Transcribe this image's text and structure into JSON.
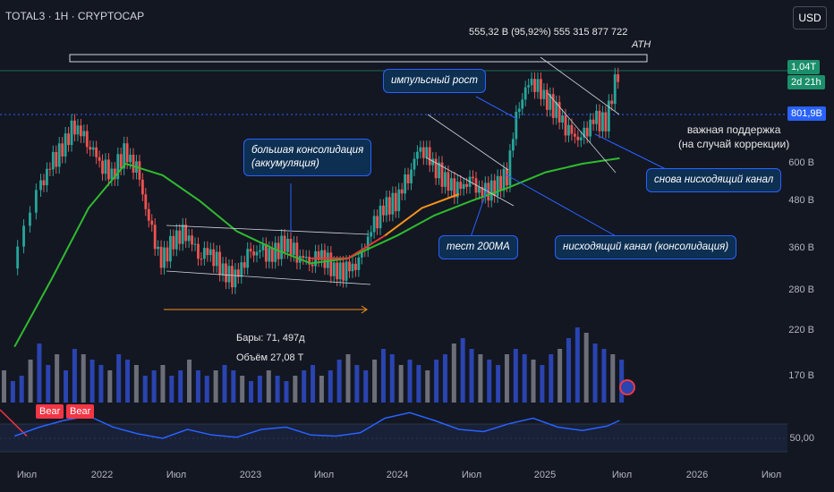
{
  "header": {
    "title": "TOTAL3 · 1H · CRYPTOCAP",
    "currency_button": "USD"
  },
  "annotations": {
    "ath_value": "555,32 B (95,92%) 555 315 877 722",
    "ath": "ATH",
    "bars": "Бары: 71, 497д",
    "volume": "Объём 27,08 T",
    "support": "важная поддержка\n(на случай коррекции)"
  },
  "callouts": {
    "consolidation": "большая консолидация\n(аккумуляция)",
    "impulse": "импульсный рост",
    "test200": "тест 200MA",
    "desc_channel": "нисходящий канал (консолидация)",
    "again_channel": "снова нисходящий канал"
  },
  "price_tags": {
    "current": "1,04T",
    "timer": "2d 21h",
    "level": "801,9B"
  },
  "bear_labels": [
    "Bear",
    "Bear"
  ],
  "osc_value": "50,00",
  "colors": {
    "up": "#26a69a",
    "down": "#ef5350",
    "ma_green": "#2fbb2f",
    "ma_orange": "#f7931a",
    "ma_red": "#e53935",
    "rsi": "#2962ff",
    "vol_blue": "#2a44b0",
    "vol_gray": "#6c6f78",
    "accent": "#2962ff"
  },
  "chart_data": {
    "type": "candlestick",
    "yscale": "log",
    "y_ticks": [
      "600 B",
      "480 B",
      "360 B",
      "280 B",
      "220 B",
      "170 B"
    ],
    "x_ticks": [
      "Июл",
      "2022",
      "Июл",
      "2023",
      "Июл",
      "2024",
      "Июл",
      "2025",
      "Июл",
      "2026",
      "Июл"
    ],
    "period_tick_labels": [
      "2021-07",
      "2022-01",
      "2022-07",
      "2023-01",
      "2023-07",
      "2024-01",
      "2024-07",
      "2025-01",
      "2025-07",
      "2026-01",
      "2026-07"
    ],
    "close_points": [
      [
        "2021-06",
        320
      ],
      [
        "2021-08",
        500
      ],
      [
        "2021-09",
        590
      ],
      [
        "2021-10",
        660
      ],
      [
        "2021-11",
        760
      ],
      [
        "2021-12",
        690
      ],
      [
        "2022-01",
        610
      ],
      [
        "2022-02",
        560
      ],
      [
        "2022-03",
        640
      ],
      [
        "2022-04",
        580
      ],
      [
        "2022-05",
        420
      ],
      [
        "2022-06",
        330
      ],
      [
        "2022-07",
        380
      ],
      [
        "2022-08",
        400
      ],
      [
        "2022-09",
        350
      ],
      [
        "2022-10",
        355
      ],
      [
        "2022-11",
        315
      ],
      [
        "2022-12",
        300
      ],
      [
        "2023-01",
        345
      ],
      [
        "2023-02",
        355
      ],
      [
        "2023-03",
        345
      ],
      [
        "2023-04",
        375
      ],
      [
        "2023-05",
        350
      ],
      [
        "2023-06",
        335
      ],
      [
        "2023-07",
        350
      ],
      [
        "2023-08",
        315
      ],
      [
        "2023-09",
        315
      ],
      [
        "2023-10",
        330
      ],
      [
        "2023-11",
        400
      ],
      [
        "2023-12",
        460
      ],
      [
        "2024-01",
        480
      ],
      [
        "2024-02",
        560
      ],
      [
        "2024-03",
        670
      ],
      [
        "2024-04",
        600
      ],
      [
        "2024-05",
        540
      ],
      [
        "2024-06",
        510
      ],
      [
        "2024-07",
        540
      ],
      [
        "2024-08",
        500
      ],
      [
        "2024-09",
        520
      ],
      [
        "2024-10",
        560
      ],
      [
        "2024-11",
        870
      ],
      [
        "2024-12",
        1000
      ],
      [
        "2025-01",
        900
      ],
      [
        "2025-02",
        820
      ],
      [
        "2025-03",
        720
      ],
      [
        "2025-04",
        690
      ],
      [
        "2025-05",
        780
      ],
      [
        "2025-06",
        770
      ],
      [
        "2025-07",
        1040
      ]
    ],
    "ma200_green": [
      [
        "2021-06",
        200
      ],
      [
        "2021-09",
        300
      ],
      [
        "2021-12",
        460
      ],
      [
        "2022-03",
        600
      ],
      [
        "2022-06",
        560
      ],
      [
        "2022-09",
        480
      ],
      [
        "2022-12",
        400
      ],
      [
        "2023-03",
        360
      ],
      [
        "2023-06",
        330
      ],
      [
        "2023-09",
        340
      ],
      [
        "2024-01",
        390
      ],
      [
        "2024-04",
        440
      ],
      [
        "2024-07",
        480
      ],
      [
        "2024-10",
        520
      ],
      [
        "2025-01",
        570
      ],
      [
        "2025-04",
        600
      ],
      [
        "2025-07",
        620
      ]
    ],
    "ma_short": [
      [
        "2023-06",
        340
      ],
      [
        "2023-09",
        340
      ],
      [
        "2023-12",
        390
      ],
      [
        "2024-03",
        460
      ],
      [
        "2024-06",
        500
      ]
    ],
    "resistance_level": 845,
    "support_level": 801.9,
    "rsi_line": [
      [
        "2021-06",
        44
      ],
      [
        "2021-08",
        52
      ],
      [
        "2021-10",
        58
      ],
      [
        "2021-12",
        62
      ],
      [
        "2022-02",
        52
      ],
      [
        "2022-04",
        46
      ],
      [
        "2022-06",
        42
      ],
      [
        "2022-08",
        50
      ],
      [
        "2022-10",
        45
      ],
      [
        "2022-12",
        43
      ],
      [
        "2023-02",
        50
      ],
      [
        "2023-04",
        52
      ],
      [
        "2023-06",
        45
      ],
      [
        "2023-08",
        44
      ],
      [
        "2023-10",
        47
      ],
      [
        "2023-12",
        60
      ],
      [
        "2024-02",
        65
      ],
      [
        "2024-04",
        58
      ],
      [
        "2024-06",
        50
      ],
      [
        "2024-08",
        48
      ],
      [
        "2024-10",
        55
      ],
      [
        "2024-12",
        60
      ],
      [
        "2025-02",
        52
      ],
      [
        "2025-04",
        49
      ],
      [
        "2025-06",
        53
      ],
      [
        "2025-07",
        58
      ]
    ],
    "volume_profile": [
      6,
      4,
      5,
      8,
      11,
      7,
      9,
      6,
      10,
      9,
      8,
      7,
      6,
      9,
      8,
      7,
      5,
      6,
      7,
      5,
      6,
      8,
      6,
      5,
      6,
      7,
      6,
      5,
      4,
      5,
      6,
      5,
      4,
      5,
      6,
      7,
      5,
      6,
      8,
      9,
      7,
      6,
      8,
      10,
      9,
      7,
      8,
      7,
      6,
      8,
      9,
      11,
      12,
      10,
      9,
      8,
      7,
      9,
      10,
      9,
      8,
      7,
      9,
      10,
      12,
      14,
      13,
      11,
      10,
      9,
      8
    ]
  }
}
